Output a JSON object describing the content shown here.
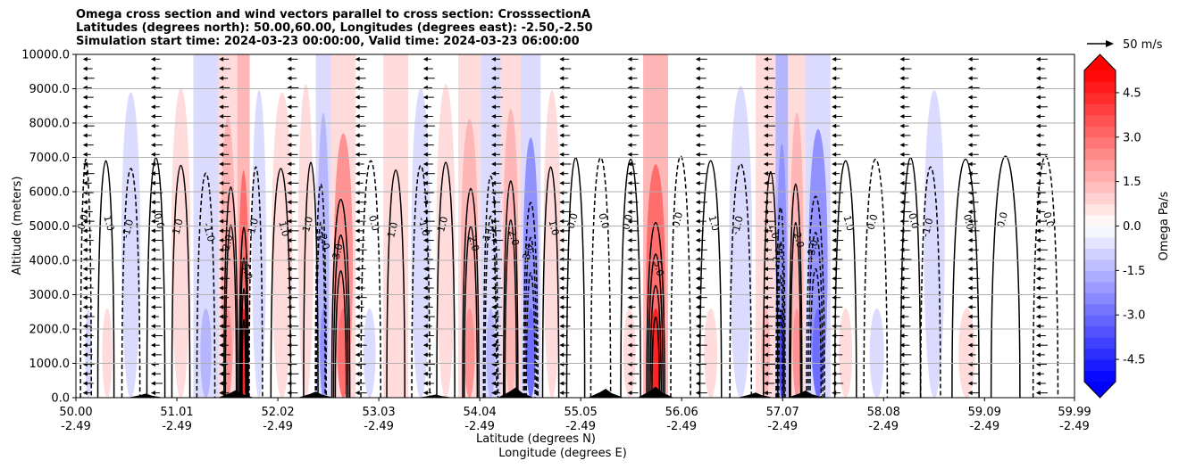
{
  "chart_data": {
    "type": "heatmap",
    "title_lines": [
      "Omega cross section and wind vectors parallel to cross section: CrosssectionA",
      "Latitudes (degrees north): 50.00,60.00, Longitudes (degrees east): -2.50,-2.50",
      "Simulation start time: 2024-03-23 00:00:00, Valid time: 2024-03-23 06:00:00"
    ],
    "ylabel": "Altitude (meters)",
    "xlabel_lines": [
      "Latitude (degrees N)",
      "Longitude (degrees E)"
    ],
    "ylim": [
      0,
      10000
    ],
    "y_ticks": [
      "0.0",
      "1000.0",
      "2000.0",
      "3000.0",
      "4000.0",
      "5000.0",
      "6000.0",
      "7000.0",
      "8000.0",
      "9000.0",
      "10000.0"
    ],
    "x_ticks": [
      {
        "lat": "50.00",
        "lon": "-2.49"
      },
      {
        "lat": "51.01",
        "lon": "-2.49"
      },
      {
        "lat": "52.02",
        "lon": "-2.49"
      },
      {
        "lat": "53.03",
        "lon": "-2.49"
      },
      {
        "lat": "54.04",
        "lon": "-2.49"
      },
      {
        "lat": "55.05",
        "lon": "-2.49"
      },
      {
        "lat": "56.06",
        "lon": "-2.49"
      },
      {
        "lat": "57.07",
        "lon": "-2.49"
      },
      {
        "lat": "58.08",
        "lon": "-2.49"
      },
      {
        "lat": "59.09",
        "lon": "-2.49"
      },
      {
        "lat": "59.99",
        "lon": "-2.49"
      }
    ],
    "xlim": [
      50.0,
      59.99
    ],
    "grid": "horizontal",
    "colorbar": {
      "label": "Omega Pa/s",
      "range": [
        -5.25,
        5.25
      ],
      "ticks": [
        "-4.5",
        "-3.0",
        "-1.5",
        "0.0",
        "1.5",
        "3.0",
        "4.5"
      ],
      "tick_values": [
        -4.5,
        -3.0,
        -1.5,
        0.0,
        1.5,
        3.0,
        4.5
      ],
      "extend": "both",
      "colormap": "bwr"
    },
    "reference_vector": "50 m/s",
    "contour_labels": [
      "0.0",
      "1.0",
      "-1.0",
      "2.0",
      "-2.0",
      "3.0",
      "4.0",
      "-3.0",
      "-4.0"
    ],
    "omega_bands": [
      {
        "lat": 50.1,
        "value": -0.4
      },
      {
        "lat": 50.3,
        "value": 0.5
      },
      {
        "lat": 50.55,
        "value": -1.0
      },
      {
        "lat": 50.8,
        "value": 0.3
      },
      {
        "lat": 51.05,
        "value": 0.8
      },
      {
        "lat": 51.3,
        "value": -1.3
      },
      {
        "lat": 51.55,
        "value": 2.2
      },
      {
        "lat": 51.68,
        "value": 4.8
      },
      {
        "lat": 51.8,
        "value": -0.9
      },
      {
        "lat": 52.05,
        "value": 1.0
      },
      {
        "lat": 52.35,
        "value": 0.6
      },
      {
        "lat": 52.45,
        "value": -2.0
      },
      {
        "lat": 52.65,
        "value": 3.0
      },
      {
        "lat": 52.95,
        "value": -0.5
      },
      {
        "lat": 53.2,
        "value": 1.1
      },
      {
        "lat": 53.45,
        "value": -0.8
      },
      {
        "lat": 53.7,
        "value": 0.6
      },
      {
        "lat": 53.95,
        "value": 2.3
      },
      {
        "lat": 54.15,
        "value": -1.5
      },
      {
        "lat": 54.35,
        "value": 1.8
      },
      {
        "lat": 54.55,
        "value": -3.2
      },
      {
        "lat": 54.75,
        "value": 0.9
      },
      {
        "lat": 55.0,
        "value": 0.3
      },
      {
        "lat": 55.25,
        "value": -0.3
      },
      {
        "lat": 55.55,
        "value": 0.4
      },
      {
        "lat": 55.8,
        "value": 4.5
      },
      {
        "lat": 56.05,
        "value": -0.2
      },
      {
        "lat": 56.35,
        "value": 0.5
      },
      {
        "lat": 56.65,
        "value": -0.7
      },
      {
        "lat": 56.95,
        "value": 1.2
      },
      {
        "lat": 57.05,
        "value": -3.5
      },
      {
        "lat": 57.2,
        "value": 2.0
      },
      {
        "lat": 57.4,
        "value": -2.8
      },
      {
        "lat": 57.7,
        "value": 0.5
      },
      {
        "lat": 58.0,
        "value": -0.4
      },
      {
        "lat": 58.35,
        "value": 0.3
      },
      {
        "lat": 58.55,
        "value": -0.9
      },
      {
        "lat": 58.9,
        "value": 0.4
      },
      {
        "lat": 59.3,
        "value": 0.2
      },
      {
        "lat": 59.7,
        "value": -0.2
      }
    ],
    "terrain_peaks": [
      {
        "lat": 50.7,
        "alt": 120
      },
      {
        "lat": 51.6,
        "alt": 220
      },
      {
        "lat": 52.4,
        "alt": 180
      },
      {
        "lat": 53.6,
        "alt": 90
      },
      {
        "lat": 54.4,
        "alt": 300
      },
      {
        "lat": 55.3,
        "alt": 260
      },
      {
        "lat": 55.8,
        "alt": 320
      },
      {
        "lat": 56.8,
        "alt": 150
      },
      {
        "lat": 57.3,
        "alt": 210
      }
    ]
  }
}
